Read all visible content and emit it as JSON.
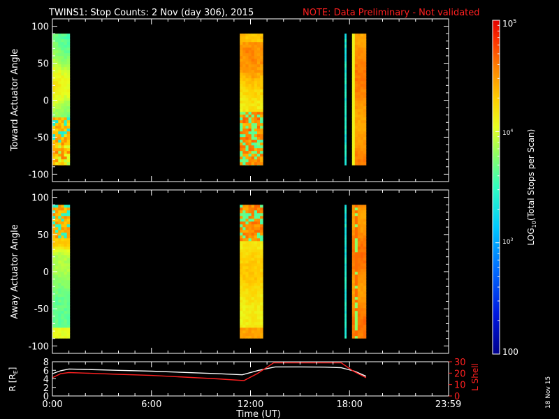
{
  "title": {
    "main": "TWINS1: Stop Counts:  2 Nov (day 306), 2015",
    "note": "NOTE: Data Preliminary - Not validated",
    "note_color": "#ff2020"
  },
  "footer_date": "18 Nov 15",
  "chart_data": [
    {
      "type": "heatmap",
      "name": "panel-toward",
      "ylabel": "Toward Actuator Angle",
      "ylim": [
        -110,
        110
      ],
      "yticks": [
        100,
        50,
        0,
        -50,
        -100
      ],
      "xlim": [
        0,
        24
      ],
      "angle_range": [
        -88,
        90
      ],
      "blocks": [
        {
          "start_hr": 0.0,
          "end_hr": 1.05,
          "profile": "edge_quiet"
        },
        {
          "start_hr": 11.35,
          "end_hr": 12.75,
          "profile": "active"
        },
        {
          "start_hr": 17.7,
          "end_hr": 17.8,
          "profile": "thin"
        },
        {
          "start_hr": 18.15,
          "end_hr": 19.0,
          "profile": "banded"
        }
      ]
    },
    {
      "type": "heatmap",
      "name": "panel-away",
      "ylabel": "Away Actuator Angle",
      "ylim": [
        -110,
        110
      ],
      "yticks": [
        100,
        50,
        0,
        -50,
        -100
      ],
      "xlim": [
        0,
        24
      ],
      "angle_range": [
        -90,
        90
      ],
      "blocks": [
        {
          "start_hr": 0.0,
          "end_hr": 1.05,
          "profile": "away_edge"
        },
        {
          "start_hr": 11.35,
          "end_hr": 12.75,
          "profile": "away_active"
        },
        {
          "start_hr": 17.7,
          "end_hr": 17.8,
          "profile": "thin"
        },
        {
          "start_hr": 18.15,
          "end_hr": 19.0,
          "profile": "away_banded"
        }
      ]
    },
    {
      "type": "line",
      "name": "panel-orbit",
      "xlim": [
        0,
        24
      ],
      "xticks": [
        "0:00",
        "6:00",
        "12:00",
        "18:00",
        "23:59"
      ],
      "xtick_hours": [
        0,
        6,
        12,
        18,
        23.983
      ],
      "xlabel": "Time (UT)",
      "ylabel_left": "R [RE]",
      "ylim_left": [
        0,
        8
      ],
      "yticks_left": [
        0,
        2,
        4,
        6,
        8
      ],
      "ylabel_right": "L Shell",
      "ylim_right": [
        0,
        30
      ],
      "yticks_right": [
        0,
        10,
        20,
        30
      ],
      "series": [
        {
          "name": "R",
          "color": "#ffffff",
          "x": [
            0,
            0.5,
            1.0,
            2.0,
            4.0,
            6.0,
            8.0,
            10.0,
            11.5,
            12.5,
            13.5,
            15.0,
            16.5,
            17.5,
            18.3,
            19.0
          ],
          "y": [
            5.2,
            5.9,
            6.3,
            6.2,
            6.0,
            5.8,
            5.5,
            5.2,
            4.95,
            6.0,
            6.8,
            6.8,
            6.75,
            6.6,
            5.8,
            4.6
          ]
        },
        {
          "name": "L Shell",
          "color": "#ff2020",
          "x": [
            0,
            0.5,
            1.0,
            2.0,
            4.0,
            6.0,
            8.0,
            10.0,
            11.6,
            12.4,
            13.4,
            15.0,
            16.5,
            17.5,
            18.2,
            19.0
          ],
          "y": [
            16,
            19.5,
            20.5,
            20,
            19,
            18,
            16.5,
            15,
            13.5,
            19.5,
            29,
            29,
            29,
            29,
            22,
            16
          ]
        }
      ]
    },
    {
      "type": "heatmap",
      "name": "colorbar",
      "scale": "log",
      "range": [
        100,
        100000
      ],
      "top_label": "10^5",
      "mid_labels": [
        "10^4",
        "10^3"
      ],
      "bottom_label": "100",
      "label": "LOG10(Total Stops per Scan)"
    }
  ]
}
